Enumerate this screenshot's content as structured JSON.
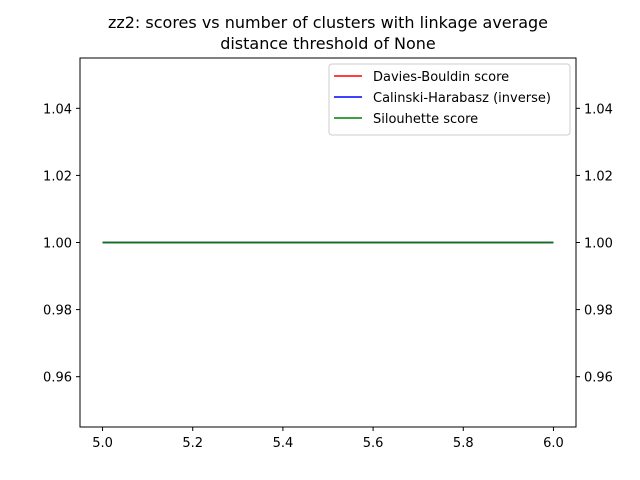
{
  "chart_data": {
    "type": "line",
    "title": "zz2: scores vs number of clusters with linkage average",
    "subtitle": "distance threshold of None",
    "xlabel": "",
    "ylabel": "",
    "xlim": [
      4.95,
      6.05
    ],
    "ylim": [
      0.945,
      1.055
    ],
    "x_ticks": [
      5.0,
      5.2,
      5.4,
      5.6,
      5.8,
      6.0
    ],
    "x_tick_labels": [
      "5.0",
      "5.2",
      "5.4",
      "5.6",
      "5.8",
      "6.0"
    ],
    "y_ticks": [
      0.96,
      0.98,
      1.0,
      1.02,
      1.04
    ],
    "y_tick_labels": [
      "0.96",
      "0.98",
      "1.00",
      "1.02",
      "1.04"
    ],
    "right_y_tick_labels": [
      "0.96",
      "0.98",
      "1.00",
      "1.02",
      "1.04"
    ],
    "grid": false,
    "legend_position": "top-right",
    "series": [
      {
        "name": "Davies-Bouldin score",
        "color": "#ff0000",
        "x": [
          5,
          6
        ],
        "y": [
          1.0,
          1.0
        ]
      },
      {
        "name": "Calinski-Harabasz (inverse)",
        "color": "#0000ff",
        "x": [
          5,
          6
        ],
        "y": [
          1.0,
          1.0
        ]
      },
      {
        "name": "Silouhette score",
        "color": "#008000",
        "x": [
          5,
          6
        ],
        "y": [
          1.0,
          1.0
        ]
      }
    ]
  }
}
